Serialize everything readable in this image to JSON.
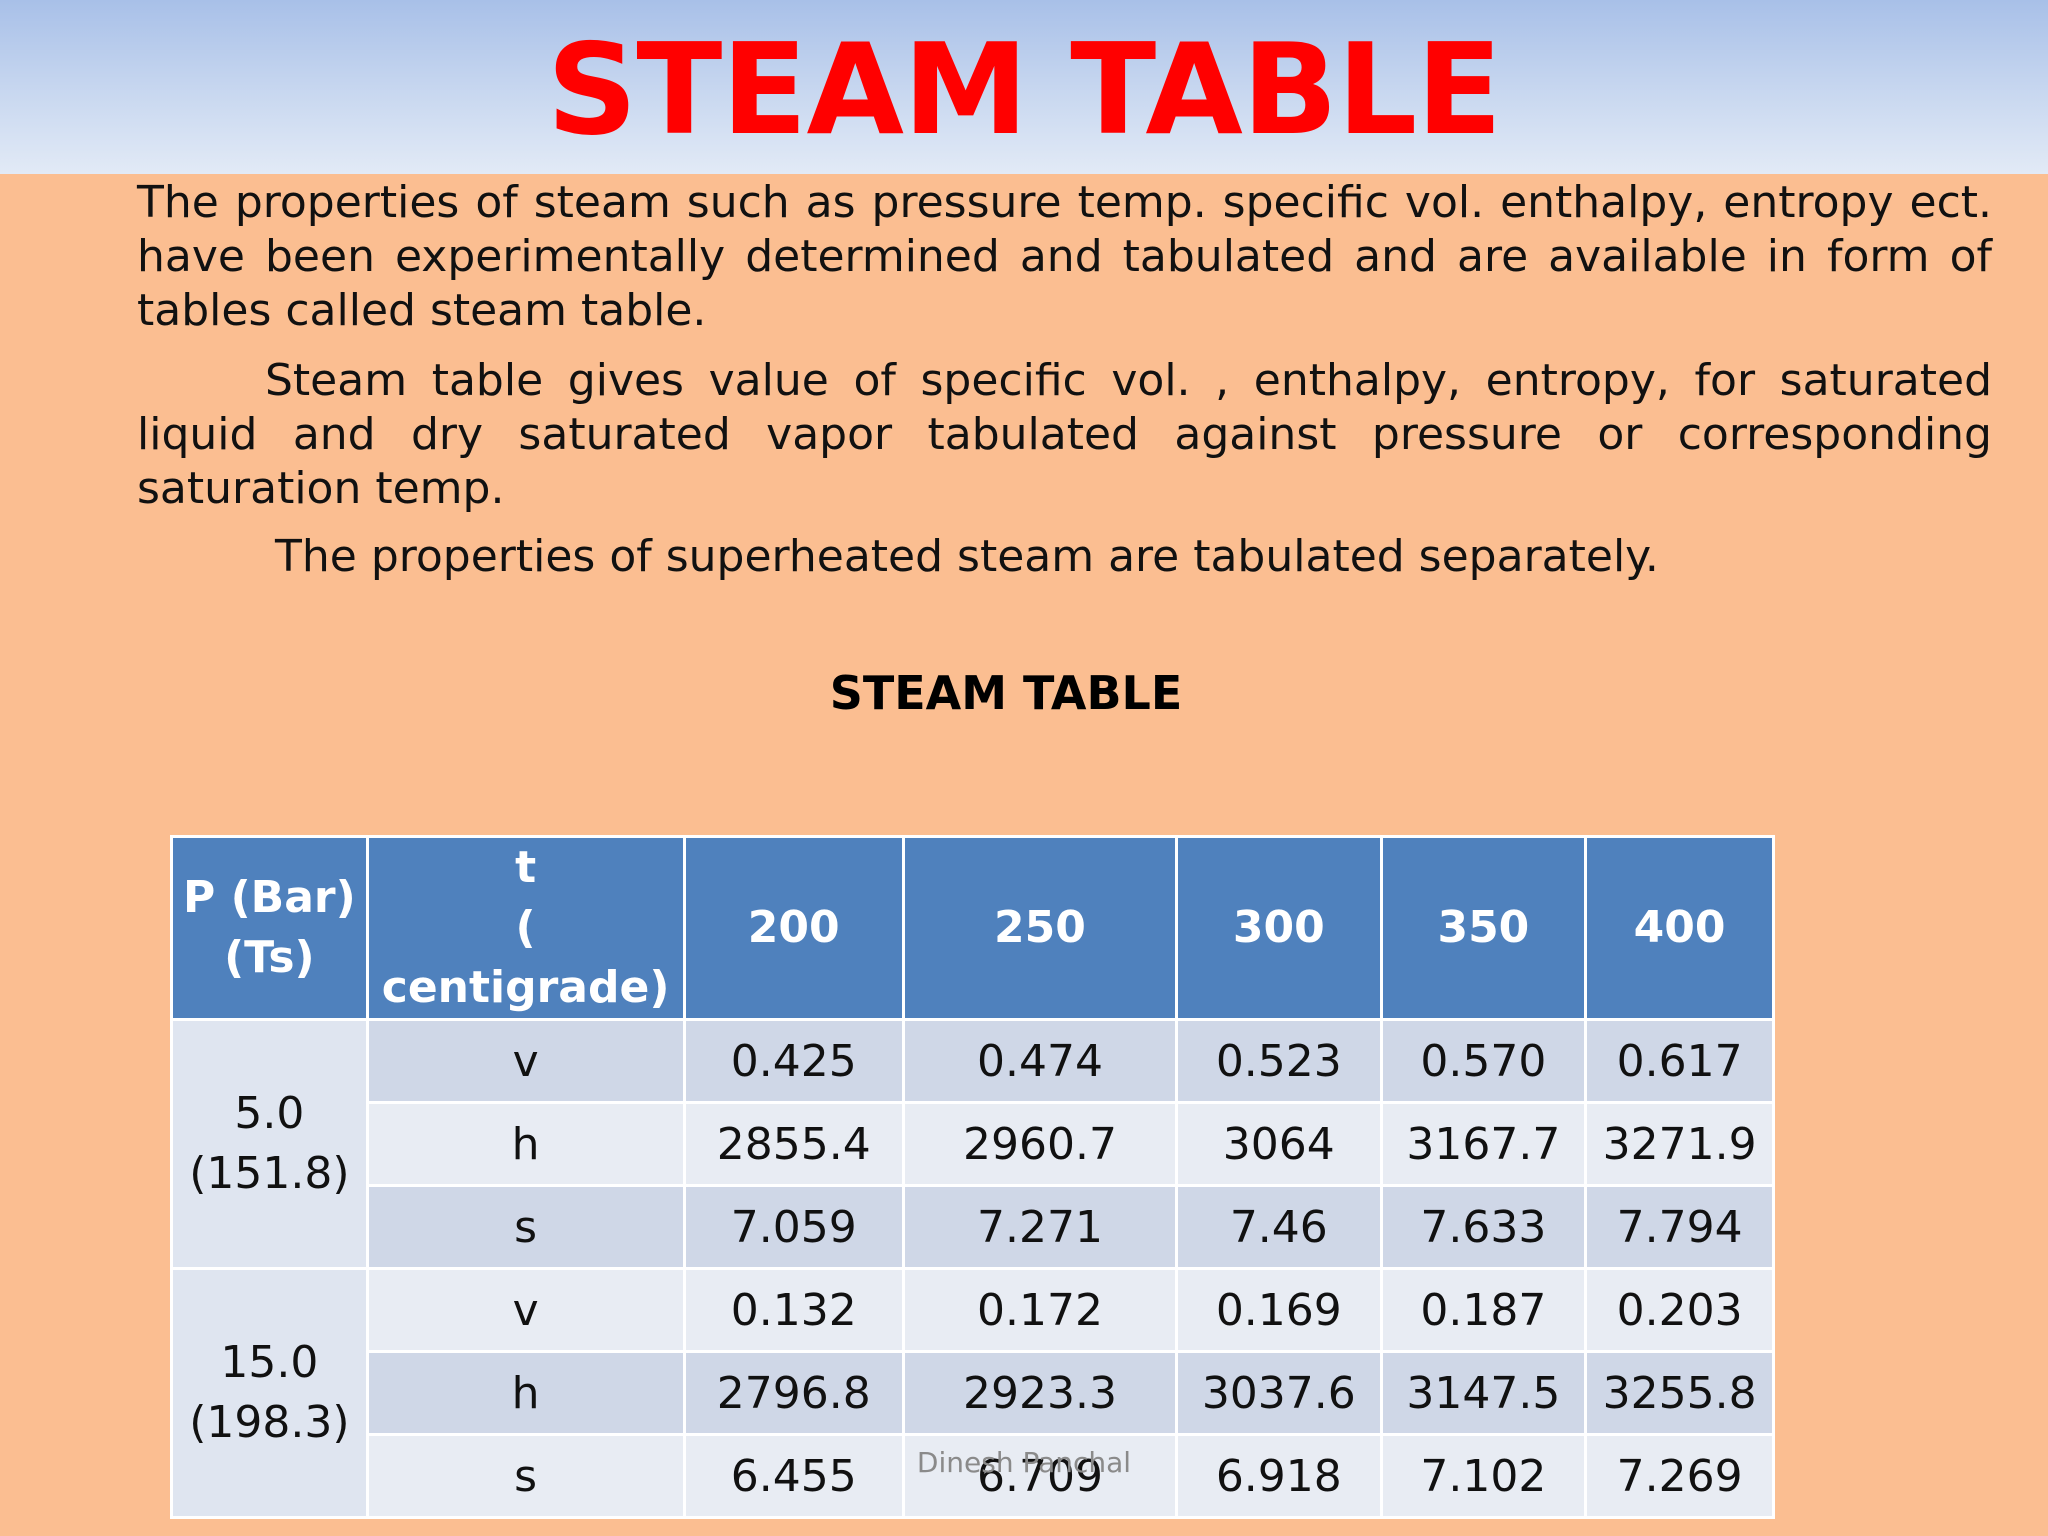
{
  "title": "STEAM TABLE",
  "paragraphs": [
    "The properties of steam such as pressure temp. specific vol. enthalpy, entropy ect. have been experimentally determined and tabulated and are available in form of tables called steam table.",
    "Steam table gives value of specific vol. , enthalpy, entropy, for saturated liquid and dry saturated vapor tabulated against pressure or corresponding saturation temp.",
    "The properties of superheated steam are tabulated separately."
  ],
  "table_title": "STEAM TABLE",
  "table": {
    "header": {
      "p_line1": "P (Bar)",
      "p_line2": "(Ts)",
      "t_line1": "t",
      "t_line2": "( centigrade)",
      "temps": [
        "200",
        "250",
        "300",
        "350",
        "400"
      ]
    },
    "groups": [
      {
        "pressure": "5.0",
        "ts": "(151.8)",
        "rows": [
          {
            "prop": "v",
            "values": [
              "0.425",
              "0.474",
              "0.523",
              "0.570",
              "0.617"
            ]
          },
          {
            "prop": "h",
            "values": [
              "2855.4",
              "2960.7",
              "3064",
              "3167.7",
              "3271.9"
            ]
          },
          {
            "prop": "s",
            "values": [
              "7.059",
              "7.271",
              "7.46",
              "7.633",
              "7.794"
            ]
          }
        ]
      },
      {
        "pressure": "15.0",
        "ts": "(198.3)",
        "rows": [
          {
            "prop": "v",
            "values": [
              "0.132",
              "0.172",
              "0.169",
              "0.187",
              "0.203"
            ]
          },
          {
            "prop": "h",
            "values": [
              "2796.8",
              "2923.3",
              "3037.6",
              "3147.5",
              "3255.8"
            ]
          },
          {
            "prop": "s",
            "values": [
              "6.455",
              "6.709",
              "6.918",
              "7.102",
              "7.269"
            ]
          }
        ]
      }
    ]
  },
  "footer": "Dinesh Panchal",
  "colors": {
    "background": "#fbbe91",
    "title": "#ff0000",
    "table_header": "#4f81bd"
  }
}
